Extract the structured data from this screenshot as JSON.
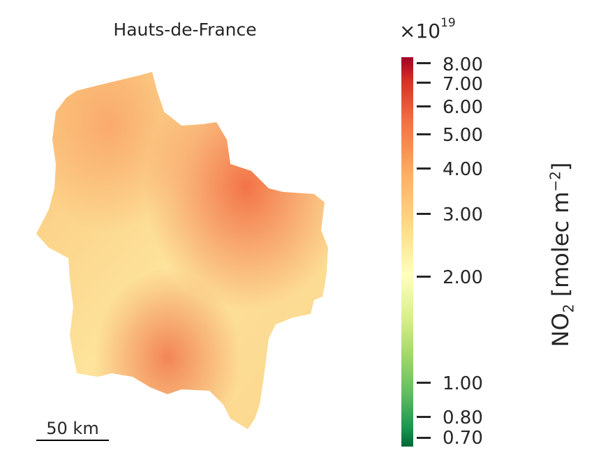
{
  "map": {
    "title": "Hauts-de-France",
    "scalebar_label": "50 km"
  },
  "colorbar": {
    "multiplier_base": "×10",
    "multiplier_exp": "19",
    "label_main": "NO",
    "label_sub": "2",
    "label_mid": " [molec m",
    "label_sup": "−2",
    "label_end": "]",
    "scale": "log",
    "colormap": "RdYlGn_r",
    "ticks": [
      "8.00",
      "7.00",
      "6.00",
      "5.00",
      "4.00",
      "3.00",
      "2.00",
      "1.00",
      "0.80",
      "0.70"
    ]
  }
}
